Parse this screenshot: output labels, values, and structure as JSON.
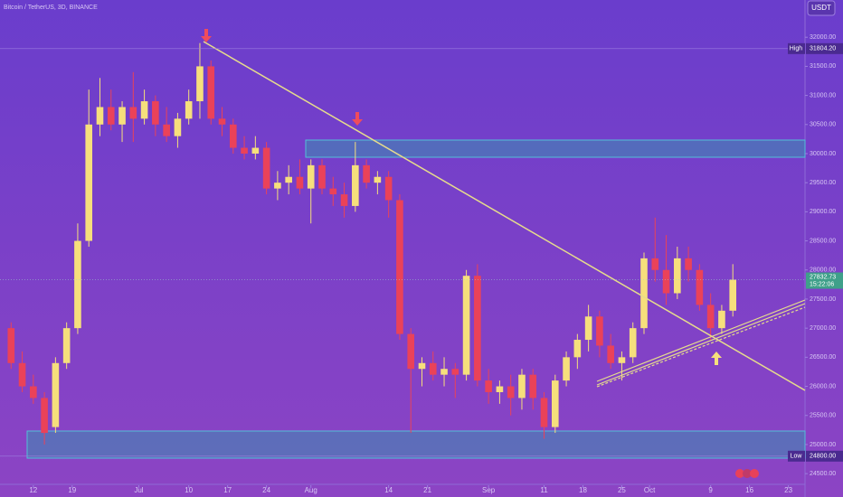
{
  "chart_data": {
    "type": "candlestick",
    "title": "Bitcoin / TetherUS, 3D, BINANCE",
    "currency": "USDT",
    "up_color": "#f6df7c",
    "down_color": "#ea4259",
    "x": [
      2,
      4,
      6,
      8,
      10,
      12,
      14,
      16,
      18,
      20,
      22,
      24,
      26,
      28,
      30,
      32,
      34,
      36,
      38,
      40,
      42,
      44,
      46,
      48,
      50,
      52,
      54,
      56,
      58,
      60,
      62,
      64,
      66,
      68,
      70,
      72,
      74,
      76,
      78,
      80,
      82,
      84,
      86,
      88,
      90,
      92,
      94,
      96,
      98,
      100,
      102,
      104,
      106,
      108,
      110,
      112,
      114,
      116,
      118,
      120,
      122,
      124,
      126,
      128,
      130,
      132
    ],
    "open": [
      27000,
      26400,
      26000,
      25800,
      25300,
      26400,
      27000,
      28500,
      30500,
      30800,
      30500,
      30800,
      30600,
      30900,
      30500,
      30300,
      30600,
      30900,
      31500,
      30600,
      30500,
      30100,
      30000,
      30100,
      29400,
      29500,
      29600,
      29400,
      29800,
      29400,
      29300,
      29100,
      29800,
      29500,
      29600,
      29200,
      26900,
      26300,
      26400,
      26200,
      26300,
      26200,
      27900,
      26100,
      25900,
      26000,
      25800,
      26200,
      25800,
      25300,
      26100,
      26500,
      26800,
      27200,
      26700,
      26400,
      26500,
      27000,
      28200,
      28000,
      27600,
      28200,
      28000,
      27400,
      27000,
      27300
    ],
    "high": [
      27100,
      26600,
      26200,
      25900,
      26500,
      27100,
      28800,
      31100,
      31300,
      31100,
      30900,
      31400,
      31100,
      31000,
      30800,
      30700,
      31100,
      31900,
      31600,
      30800,
      30600,
      30300,
      30300,
      30200,
      29700,
      29800,
      29900,
      29900,
      29900,
      29600,
      29500,
      30200,
      29900,
      29700,
      29700,
      29300,
      27000,
      26500,
      26600,
      26500,
      26400,
      28000,
      28100,
      26300,
      26100,
      26200,
      26300,
      26300,
      25900,
      26200,
      26600,
      26900,
      27400,
      27300,
      26900,
      26600,
      27100,
      28300,
      28900,
      28600,
      28400,
      28400,
      28100,
      27600,
      27400,
      28100
    ],
    "low": [
      26300,
      25900,
      25700,
      25000,
      25200,
      26300,
      26900,
      28400,
      30300,
      30400,
      30200,
      30200,
      30500,
      30300,
      30200,
      30100,
      30500,
      30600,
      30500,
      30300,
      30000,
      29900,
      29900,
      29300,
      29200,
      29300,
      29300,
      28800,
      29300,
      29100,
      28900,
      29000,
      29400,
      29300,
      28900,
      26800,
      25200,
      26000,
      26100,
      26000,
      25800,
      26100,
      26000,
      25700,
      25700,
      25500,
      25600,
      25600,
      25100,
      25200,
      26000,
      26300,
      26600,
      26500,
      26300,
      26100,
      26400,
      26900,
      27800,
      27400,
      27500,
      27800,
      27300,
      26800,
      26900,
      27200
    ],
    "close": [
      26400,
      26000,
      25800,
      25200,
      26400,
      27000,
      28500,
      30500,
      30800,
      30500,
      30800,
      30600,
      30900,
      30500,
      30300,
      30600,
      30900,
      31500,
      30600,
      30500,
      30100,
      30000,
      30100,
      29400,
      29500,
      29600,
      29400,
      29800,
      29400,
      29300,
      29100,
      29800,
      29500,
      29600,
      29200,
      26900,
      26300,
      26400,
      26200,
      26300,
      26200,
      27900,
      26100,
      25900,
      26000,
      25800,
      26200,
      25800,
      25300,
      26100,
      26500,
      26800,
      27200,
      26700,
      26400,
      26500,
      27000,
      28200,
      28000,
      27600,
      28200,
      28000,
      27400,
      27000,
      27300,
      27832.73
    ],
    "xlim": [
      0,
      145
    ],
    "xticks": [
      {
        "value": 6,
        "label": "12"
      },
      {
        "value": 13,
        "label": "19"
      },
      {
        "value": 25,
        "label": "Jul"
      },
      {
        "value": 34,
        "label": "10"
      },
      {
        "value": 41,
        "label": "17"
      },
      {
        "value": 48,
        "label": "24"
      },
      {
        "value": 56,
        "label": "Aug"
      },
      {
        "value": 70,
        "label": "14"
      },
      {
        "value": 77,
        "label": "21"
      },
      {
        "value": 88,
        "label": "Sep"
      },
      {
        "value": 98,
        "label": "11"
      },
      {
        "value": 105,
        "label": "18"
      },
      {
        "value": 112,
        "label": "25"
      },
      {
        "value": 117,
        "label": "Oct"
      },
      {
        "value": 128,
        "label": "9"
      },
      {
        "value": 135,
        "label": "16"
      },
      {
        "value": 142,
        "label": "23"
      }
    ],
    "ylim": [
      24300,
      32640
    ],
    "yticks": [
      {
        "value": 24500,
        "label": "24500.00"
      },
      {
        "value": 25000,
        "label": "25000.00"
      },
      {
        "value": 25500,
        "label": "25500.00"
      },
      {
        "value": 26000,
        "label": "26000.00"
      },
      {
        "value": 26500,
        "label": "26500.00"
      },
      {
        "value": 27000,
        "label": "27000.00"
      },
      {
        "value": 27500,
        "label": "27500.00"
      },
      {
        "value": 28000,
        "label": "28000.00"
      },
      {
        "value": 28500,
        "label": "28500.00"
      },
      {
        "value": 29000,
        "label": "29000.00"
      },
      {
        "value": 29500,
        "label": "29500.00"
      },
      {
        "value": 30000,
        "label": "30000.00"
      },
      {
        "value": 30500,
        "label": "30500.00"
      },
      {
        "value": 31000,
        "label": "31000.00"
      },
      {
        "value": 31500,
        "label": "31500.00"
      },
      {
        "value": 32000,
        "label": "32000.00"
      }
    ],
    "high_marker": {
      "label": "High",
      "value": 31804.2,
      "value_label": "31804.20"
    },
    "low_marker": {
      "label": "Low",
      "value": 24800,
      "value_label": "24800.00"
    },
    "last_price": {
      "value": 27832.73,
      "value_label": "27832.73",
      "countdown": "15:22:06"
    }
  }
}
